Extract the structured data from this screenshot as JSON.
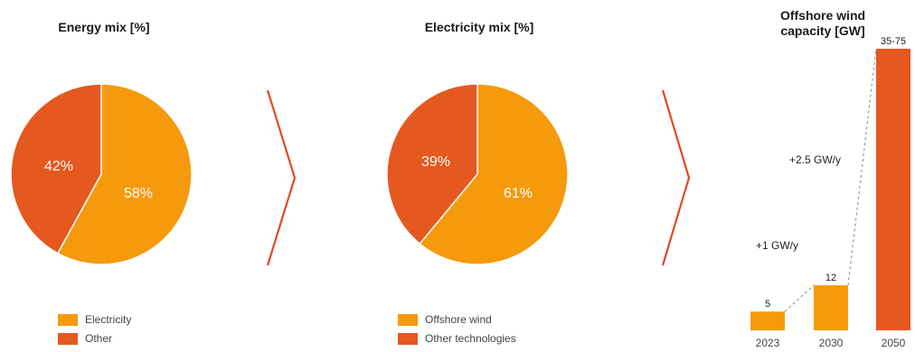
{
  "colors": {
    "primary": "#F59A0C",
    "secondary": "#E5581F",
    "arrow": "#E04A1E"
  },
  "chart_data": [
    {
      "type": "pie",
      "title": "Energy mix [%]",
      "slices": [
        {
          "label": "Electricity",
          "value": 58,
          "display": "58%"
        },
        {
          "label": "Other",
          "value": 42,
          "display": "42%"
        }
      ]
    },
    {
      "type": "pie",
      "title": "Electricity mix [%]",
      "slices": [
        {
          "label": "Offshore wind",
          "value": 61,
          "display": "61%"
        },
        {
          "label": "Other technologies",
          "value": 39,
          "display": "39%"
        }
      ]
    },
    {
      "type": "bar",
      "title": "Offshore wind capacity [GW]",
      "title_lines": [
        "Offshore wind",
        "capacity [GW]"
      ],
      "categories": [
        "2023",
        "2030",
        "2050"
      ],
      "values": [
        5,
        12,
        75
      ],
      "value_labels": [
        "5",
        "12",
        "35-75"
      ],
      "annotations": [
        "+1 GW/y",
        "+2.5 GW/y"
      ]
    }
  ]
}
